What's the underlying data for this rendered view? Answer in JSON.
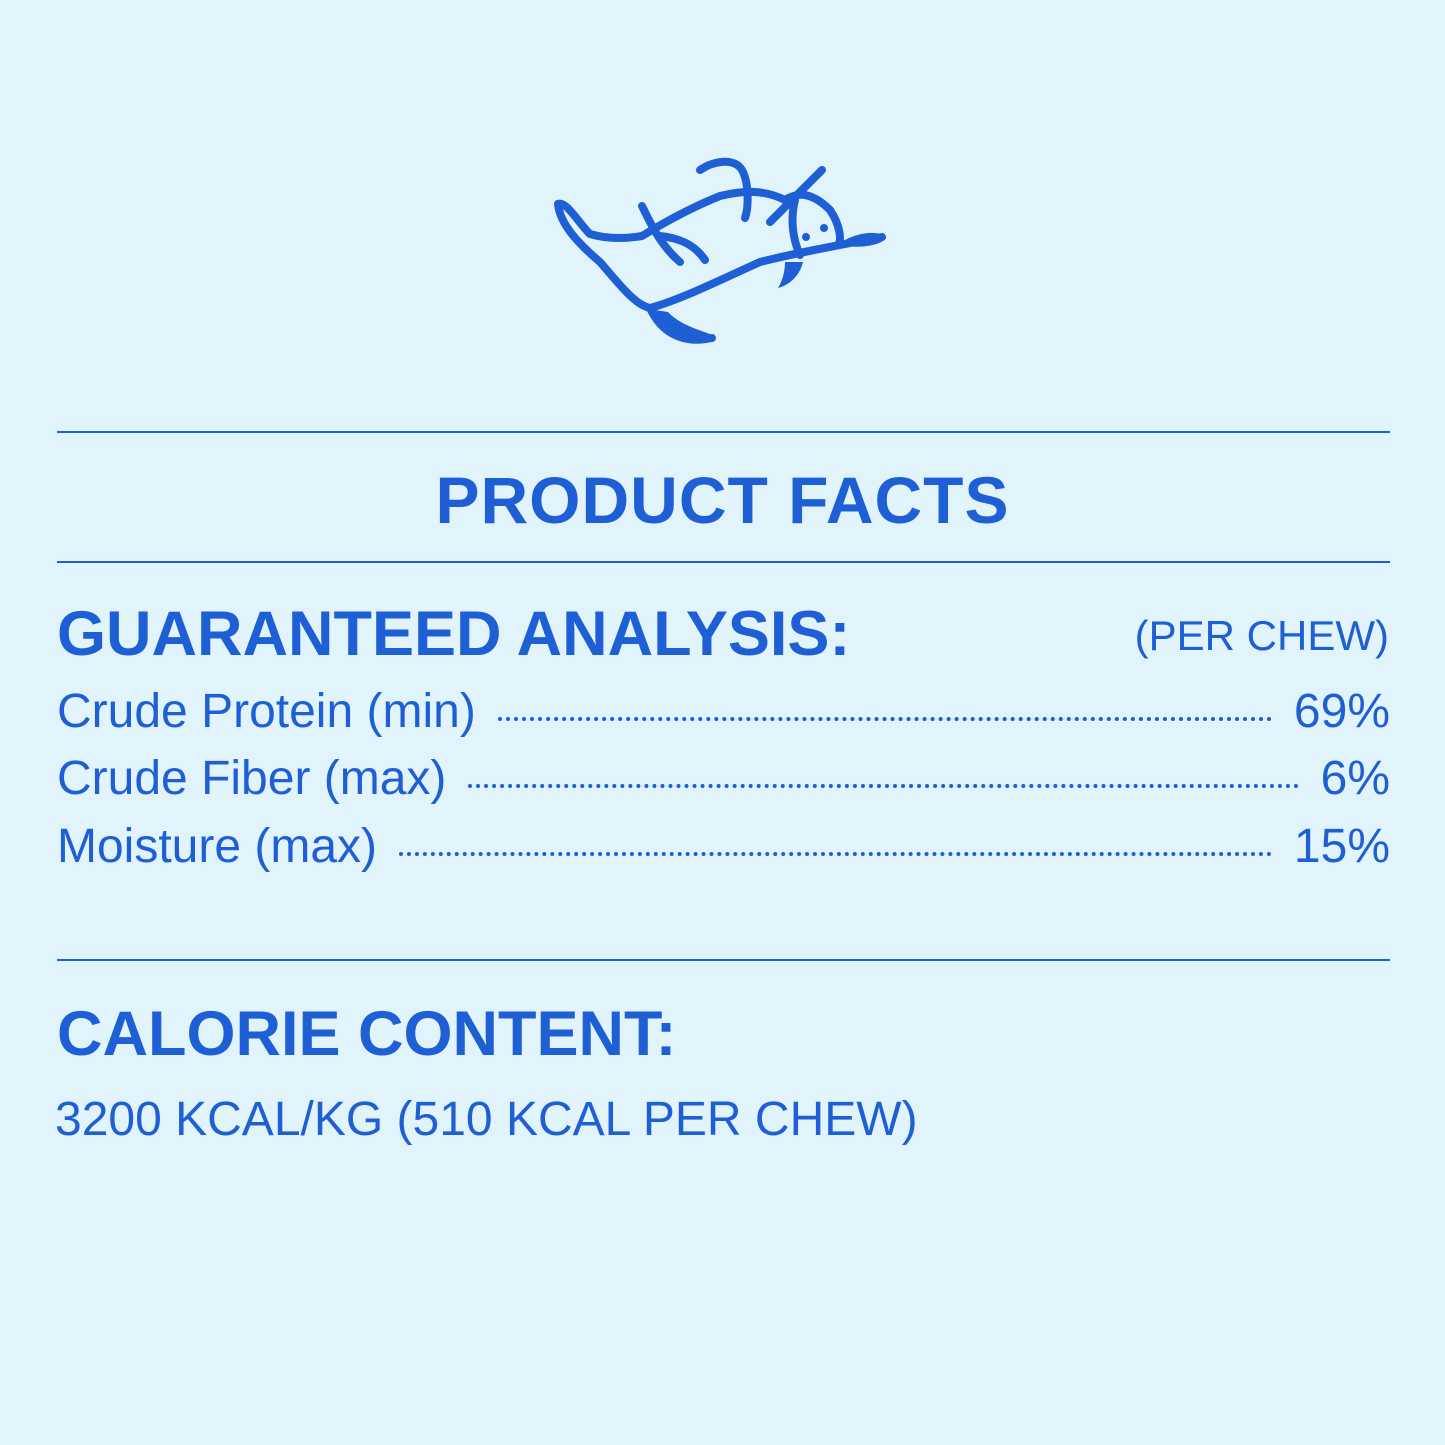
{
  "illustration": {
    "icon": "dog-rolling-on-back-icon",
    "color": "#1f5fd6"
  },
  "title": "PRODUCT FACTS",
  "analysis": {
    "heading": "GUARANTEED ANALYSIS:",
    "unit": "(PER CHEW)",
    "rows": [
      {
        "label": "Crude Protein (min)",
        "value": "69%"
      },
      {
        "label": "Crude Fiber (max)",
        "value": "6%"
      },
      {
        "label": "Moisture (max)",
        "value": "15%"
      }
    ]
  },
  "calorie": {
    "heading": "CALORIE CONTENT:",
    "text": "3200 KCAL/KG (510 KCAL PER CHEW)"
  },
  "colors": {
    "background": "#e2f4fb",
    "accent": "#1f5fd6"
  }
}
